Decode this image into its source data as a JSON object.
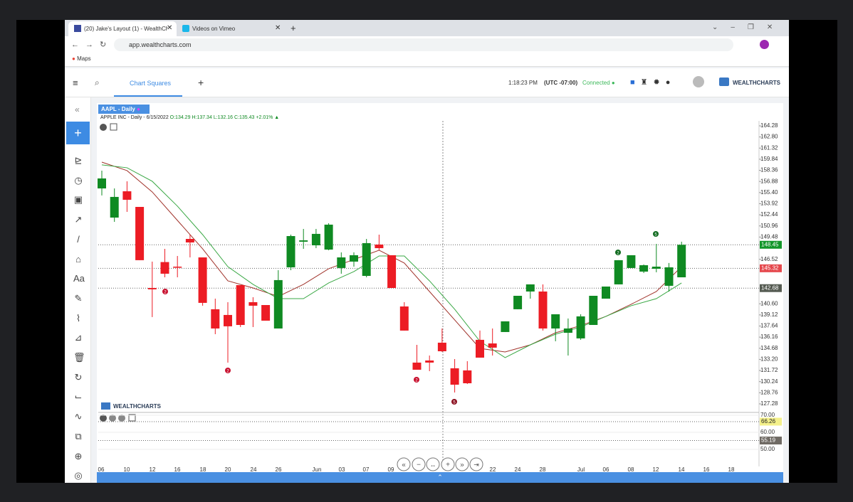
{
  "browser": {
    "tabs": [
      "(20) Jake's Layout (1) - WealthCh",
      "Videos on Vimeo"
    ],
    "url": "app.wealthcharts.com",
    "bookmark": "Maps"
  },
  "app": {
    "tab": "Chart Squares",
    "time": "1:18:23 PM",
    "timezone": "(UTC -07:00)",
    "status": "Connected",
    "brand": "WEALTHCHARTS",
    "tool_text": "Aa"
  },
  "chart": {
    "symbol_tab": "AAPL - Daily",
    "info": {
      "name": "APPLE INC - Daily - 6/15/2022",
      "open": "O:134.29",
      "high": "H:137.34",
      "low": "L:132.16",
      "close": "C:135.43",
      "change": "+2.01%"
    },
    "watermark": "WEALTHCHARTS",
    "ylim": [
      126.33,
      164.94
    ],
    "yticks": [
      {
        "value": 164.28,
        "label": "164.28"
      },
      {
        "value": 162.8,
        "label": "162.80"
      },
      {
        "value": 161.32,
        "label": "161.32"
      },
      {
        "value": 159.84,
        "label": "159.84"
      },
      {
        "value": 158.36,
        "label": "158.36"
      },
      {
        "value": 156.88,
        "label": "156.88"
      },
      {
        "value": 155.4,
        "label": "155.40"
      },
      {
        "value": 153.92,
        "label": "153.92"
      },
      {
        "value": 152.44,
        "label": "152.44"
      },
      {
        "value": 150.96,
        "label": "150.96"
      },
      {
        "value": 149.48,
        "label": "149.48"
      },
      {
        "value": 146.52,
        "label": "146.52"
      },
      {
        "value": 140.6,
        "label": "140.60"
      },
      {
        "value": 139.12,
        "label": "139.12"
      },
      {
        "value": 137.64,
        "label": "137.64"
      },
      {
        "value": 136.16,
        "label": "136.16"
      },
      {
        "value": 134.68,
        "label": "134.68"
      },
      {
        "value": 133.2,
        "label": "133.20"
      },
      {
        "value": 131.72,
        "label": "131.72"
      },
      {
        "value": 130.24,
        "label": "130.24"
      },
      {
        "value": 128.76,
        "label": "128.76"
      },
      {
        "value": 127.28,
        "label": "127.28"
      }
    ],
    "price_labels": [
      {
        "value": 148.45,
        "label": "148.45",
        "color": "#12962a"
      },
      {
        "value": 145.32,
        "label": "145.32",
        "color": "#e5484d"
      },
      {
        "value": 142.68,
        "label": "142.68",
        "color": "#555b52"
      }
    ],
    "up_color": "#0f8a22",
    "down_color": "#ec1c24",
    "ohlc": [
      [
        155.95,
        158.32,
        155.01,
        157.28
      ],
      [
        152.07,
        155.95,
        151.5,
        154.82
      ],
      [
        155.57,
        156.9,
        152.83,
        154.44
      ],
      [
        153.49,
        153.49,
        146.4,
        146.4
      ],
      [
        142.7,
        146.21,
        138.83,
        142.52
      ],
      [
        146.15,
        147.91,
        144.12,
        144.6
      ],
      [
        145.54,
        146.96,
        144.12,
        145.45
      ],
      [
        149.23,
        149.8,
        146.77,
        148.76
      ],
      [
        146.77,
        146.77,
        140.34,
        140.72
      ],
      [
        139.87,
        141.28,
        136.55,
        137.31
      ],
      [
        139.11,
        140.81,
        132.77,
        137.6
      ],
      [
        143.08,
        143.08,
        137.5,
        137.78
      ],
      [
        140.81,
        141.47,
        137.5,
        140.34
      ],
      [
        140.43,
        140.43,
        138.35,
        138.35
      ],
      [
        137.31,
        145.07,
        137.31,
        143.75
      ],
      [
        145.45,
        149.8,
        145.07,
        149.61
      ],
      [
        148.86,
        150.56,
        147.91,
        149.04
      ],
      [
        148.38,
        150.56,
        148.0,
        149.9
      ],
      [
        147.81,
        151.32,
        147.72,
        151.13
      ],
      [
        145.36,
        147.44,
        144.6,
        146.77
      ],
      [
        146.21,
        147.44,
        145.54,
        147.06
      ],
      [
        144.31,
        149.23,
        144.12,
        148.67
      ],
      [
        148.48,
        149.8,
        147.72,
        148.0
      ],
      [
        147.06,
        147.06,
        142.7,
        142.7
      ],
      [
        140.24,
        140.81,
        137.03,
        137.03
      ],
      [
        132.77,
        135.13,
        131.82,
        131.82
      ],
      [
        133.05,
        133.71,
        131.63,
        132.77
      ],
      [
        135.42,
        137.31,
        134.19,
        134.28
      ],
      [
        132.01,
        133.24,
        128.79,
        129.83
      ],
      [
        131.73,
        132.96,
        129.92,
        130.02
      ],
      [
        135.8,
        137.03,
        133.43,
        133.43
      ],
      [
        135.32,
        137.31,
        133.71,
        134.76
      ],
      [
        136.84,
        138.26,
        136.84,
        138.26
      ],
      [
        139.87,
        141.66,
        139.87,
        141.66
      ],
      [
        142.23,
        143.18,
        141.28,
        143.18
      ],
      [
        142.23,
        143.18,
        137.03,
        137.31
      ],
      [
        137.31,
        139.2,
        135.61,
        139.2
      ],
      [
        136.74,
        138.64,
        133.71,
        137.31
      ],
      [
        135.99,
        139.2,
        135.8,
        138.92
      ],
      [
        137.78,
        141.66,
        137.78,
        141.66
      ],
      [
        141.28,
        142.89,
        141.28,
        142.89
      ],
      [
        143.18,
        146.4,
        143.18,
        146.4
      ],
      [
        145.36,
        147.06,
        145.36,
        147.06
      ],
      [
        144.88,
        145.83,
        144.69,
        145.73
      ],
      [
        145.26,
        148.57,
        144.79,
        145.54
      ],
      [
        142.99,
        146.02,
        142.23,
        145.45
      ],
      [
        144.12,
        148.86,
        144.12,
        148.45
      ]
    ],
    "averages": [
      {
        "color": "#a0322a",
        "values": [
          159.45,
          158.32,
          155.48,
          151.69,
          147.91,
          143.65,
          142.7,
          141.57,
          143.18,
          145.26,
          146.49,
          147.72,
          146.02,
          142.23,
          138.45,
          134.66,
          134.19,
          135.13,
          136.74,
          137.69,
          138.92,
          140.53,
          142.23,
          145.54
        ]
      },
      {
        "color": "#3aa845",
        "values": [
          159.08,
          158.7,
          156.9,
          153.59,
          149.8,
          145.54,
          143.18,
          141.28,
          141.28,
          143.37,
          144.88,
          146.96,
          146.96,
          143.65,
          139.87,
          135.61,
          133.43,
          135.13,
          136.55,
          137.5,
          138.92,
          140.34,
          141.28,
          143.37
        ]
      }
    ],
    "signals": [
      "2",
      "2",
      "2",
      "2",
      "5",
      "5"
    ],
    "xlabels": [
      "06",
      "10",
      "12",
      "16",
      "18",
      "20",
      "24",
      "26",
      "Jun",
      "03",
      "07",
      "09",
      "22",
      "24",
      "28",
      "Jul",
      "06",
      "08",
      "12",
      "14",
      "16",
      "18"
    ],
    "sub": {
      "ylim": [
        40,
        71.67
      ],
      "yticks": [
        {
          "value": 70,
          "label": "70.00"
        },
        {
          "value": 60,
          "label": "60.00"
        },
        {
          "value": 50,
          "label": "50.00"
        }
      ],
      "labels": [
        {
          "value": 66.26,
          "label": "66.26",
          "color": "#f4f08a"
        },
        {
          "value": 55.19,
          "label": "55.19",
          "color": "#6f6a64"
        }
      ]
    }
  }
}
